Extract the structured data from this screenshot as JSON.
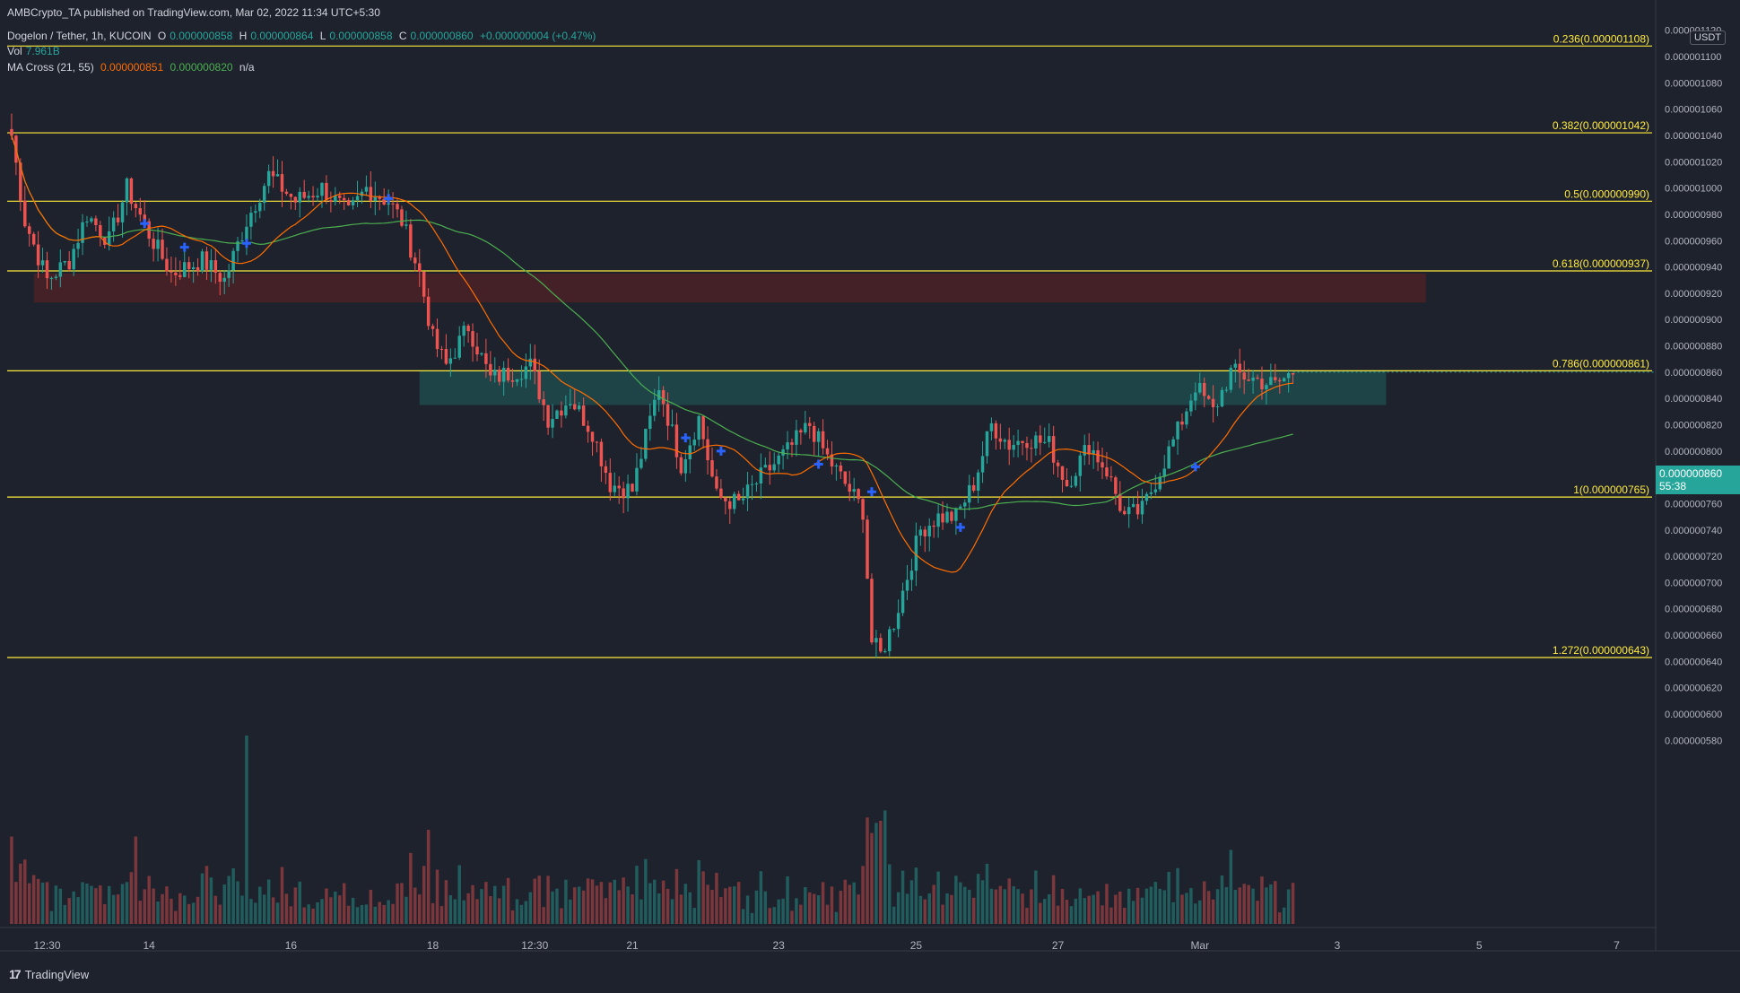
{
  "published": "AMBCrypto_TA published on TradingView.com, Mar 02, 2022 11:34 UTC+5:30",
  "header": {
    "symbol": "Dogelon / Tether, 1h, KUCOIN",
    "o_label": "O",
    "o_value": "0.000000858",
    "h_label": "H",
    "h_value": "0.000000864",
    "l_label": "L",
    "l_value": "0.000000858",
    "c_label": "C",
    "c_value": "0.000000860",
    "change": "+0.000000004 (+0.47%)",
    "vol_label": "Vol",
    "vol_value": "7.961B",
    "ma_label": "MA Cross (21, 55)",
    "ma_fast": "0.000000851",
    "ma_slow": "0.000000820",
    "ma_na": "n/a"
  },
  "unit_badge": "USDT",
  "price_tag": {
    "price": "0.000000860",
    "countdown": "55:38"
  },
  "footer": {
    "brand": "TradingView",
    "logo": "17"
  },
  "colors": {
    "background": "#1e222d",
    "up": "#26a69a",
    "down": "#ef5350",
    "fib_line": "#ffeb3b",
    "ma_fast": "#ff6d00",
    "ma_slow": "#4caf50",
    "cross_marker": "#2962ff",
    "resistance_zone": "#4a2127",
    "support_zone": "#1f4a4e"
  },
  "chart_data": {
    "type": "candlestick",
    "ylim": [
      5.7e-07,
      1.128e-06
    ],
    "y_ticks": [
      "0.000001120",
      "0.000001100",
      "0.000001080",
      "0.000001060",
      "0.000001040",
      "0.000001020",
      "0.000001000",
      "0.000000980",
      "0.000000960",
      "0.000000940",
      "0.000000920",
      "0.000000900",
      "0.000000880",
      "0.000000860",
      "0.000000840",
      "0.000000820",
      "0.000000800",
      "0.000000780",
      "0.000000760",
      "0.000000740",
      "0.000000720",
      "0.000000700",
      "0.000000680",
      "0.000000660",
      "0.000000640",
      "0.000000620",
      "0.000000600",
      "0.000000580"
    ],
    "x_ticks": [
      {
        "label": "12:30",
        "i": 8
      },
      {
        "label": "14",
        "i": 31
      },
      {
        "label": "16",
        "i": 63
      },
      {
        "label": "18",
        "i": 95
      },
      {
        "label": "12:30",
        "i": 118
      },
      {
        "label": "21",
        "i": 140
      },
      {
        "label": "23",
        "i": 173
      },
      {
        "label": "25",
        "i": 204
      },
      {
        "label": "27",
        "i": 236
      },
      {
        "label": "Mar",
        "i": 268
      },
      {
        "label": "3",
        "i": 299
      },
      {
        "label": "5",
        "i": 331
      },
      {
        "label": "7",
        "i": 362
      }
    ],
    "x_range": [
      -1,
      370
    ],
    "fib_levels": [
      {
        "label": "0.236(0.000001108)",
        "value": 1.108e-06
      },
      {
        "label": "0.382(0.000001042)",
        "value": 1.042e-06
      },
      {
        "label": "0.5(0.000000990)",
        "value": 9.9e-07
      },
      {
        "label": "0.618(0.000000937)",
        "value": 9.37e-07
      },
      {
        "label": "0.786(0.000000861)",
        "value": 8.61e-07
      },
      {
        "label": "1(0.000000765)",
        "value": 7.65e-07
      },
      {
        "label": "1.272(0.000000643)",
        "value": 6.43e-07
      }
    ],
    "zones": [
      {
        "name": "resistance",
        "from_i": 5,
        "to_i": 319,
        "low": 9.13e-07,
        "high": 9.35e-07
      },
      {
        "name": "support",
        "from_i": 92,
        "to_i": 310,
        "low": 8.35e-07,
        "high": 8.61e-07
      }
    ],
    "close_anchors": [
      [
        0,
        1.04e-06
      ],
      [
        3,
        9.75e-07
      ],
      [
        8,
        9.3e-07
      ],
      [
        13,
        9.45e-07
      ],
      [
        17,
        9.8e-07
      ],
      [
        22,
        9.6e-07
      ],
      [
        26,
        1e-06
      ],
      [
        31,
        9.65e-07
      ],
      [
        36,
        9.35e-07
      ],
      [
        43,
        9.45e-07
      ],
      [
        48,
        9.3e-07
      ],
      [
        53,
        9.75e-07
      ],
      [
        58,
        1.01e-06
      ],
      [
        64,
        9.9e-07
      ],
      [
        70,
        1e-06
      ],
      [
        76,
        9.8e-07
      ],
      [
        80,
        1e-06
      ],
      [
        85,
        9.9e-07
      ],
      [
        88,
        9.75e-07
      ],
      [
        92,
        9.35e-07
      ],
      [
        95,
        8.85e-07
      ],
      [
        98,
        8.65e-07
      ],
      [
        103,
        8.95e-07
      ],
      [
        108,
        8.55e-07
      ],
      [
        113,
        8.6e-07
      ],
      [
        117,
        8.65e-07
      ],
      [
        121,
        8.25e-07
      ],
      [
        126,
        8.4e-07
      ],
      [
        131,
        8.15e-07
      ],
      [
        135,
        7.75e-07
      ],
      [
        140,
        7.7e-07
      ],
      [
        146,
        8.5e-07
      ],
      [
        151,
        7.9e-07
      ],
      [
        155,
        8.25e-07
      ],
      [
        159,
        7.65e-07
      ],
      [
        164,
        7.6e-07
      ],
      [
        169,
        7.8e-07
      ],
      [
        175,
        8e-07
      ],
      [
        180,
        8.2e-07
      ],
      [
        184,
        7.95e-07
      ],
      [
        188,
        7.75e-07
      ],
      [
        192,
        7.55e-07
      ],
      [
        194,
        6.55e-07
      ],
      [
        196,
        6.45e-07
      ],
      [
        199,
        6.7e-07
      ],
      [
        202,
        7.05e-07
      ],
      [
        205,
        7.4e-07
      ],
      [
        209,
        7.5e-07
      ],
      [
        213,
        7.5e-07
      ],
      [
        217,
        7.75e-07
      ],
      [
        221,
        8.2e-07
      ],
      [
        225,
        8.05e-07
      ],
      [
        229,
        8.1e-07
      ],
      [
        234,
        8.05e-07
      ],
      [
        238,
        7.75e-07
      ],
      [
        243,
        8.05e-07
      ],
      [
        247,
        7.85e-07
      ],
      [
        251,
        7.5e-07
      ],
      [
        255,
        7.55e-07
      ],
      [
        259,
        7.85e-07
      ],
      [
        263,
        8.15e-07
      ],
      [
        267,
        8.5e-07
      ],
      [
        271,
        8.3e-07
      ],
      [
        275,
        8.6e-07
      ],
      [
        280,
        8.55e-07
      ],
      [
        285,
        8.5e-07
      ],
      [
        289,
        8.6e-07
      ]
    ],
    "cross_markers": [
      {
        "i": 30,
        "value": 9.73e-07
      },
      {
        "i": 39,
        "value": 9.55e-07
      },
      {
        "i": 53,
        "value": 9.58e-07
      },
      {
        "i": 85,
        "value": 9.92e-07
      },
      {
        "i": 152,
        "value": 8.1e-07
      },
      {
        "i": 160,
        "value": 8e-07
      },
      {
        "i": 182,
        "value": 7.9e-07
      },
      {
        "i": 194,
        "value": 7.69e-07
      },
      {
        "i": 214,
        "value": 7.42e-07
      },
      {
        "i": 267,
        "value": 7.88e-07
      }
    ],
    "last_index": 289,
    "volume_scale_note": "volume bars relative"
  }
}
